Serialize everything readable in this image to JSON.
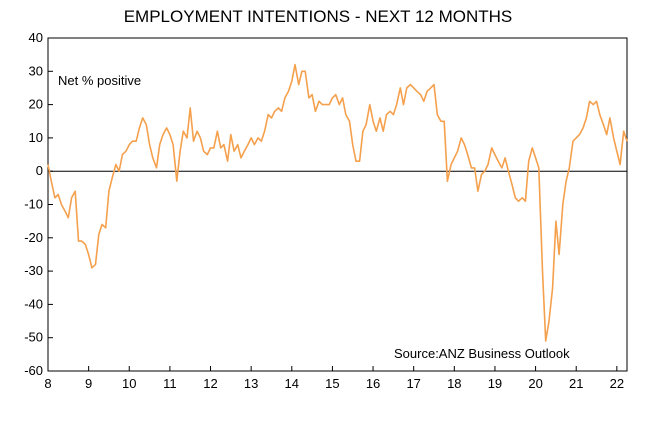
{
  "chart_data": {
    "type": "line",
    "title": "EMPLOYMENT INTENTIONS - NEXT 12 MONTHS",
    "ylabel_note": "Net % positive",
    "source": "Source:ANZ Business Outlook",
    "ylim": [
      -60,
      40
    ],
    "yticks": [
      40,
      30,
      20,
      10,
      0,
      -10,
      -20,
      -30,
      -40,
      -50,
      -60
    ],
    "xlim": [
      2008,
      2022.25
    ],
    "xticks": [
      2008,
      2009,
      2010,
      2011,
      2012,
      2013,
      2014,
      2015,
      2016,
      2017,
      2018,
      2019,
      2020,
      2021,
      2022
    ],
    "xtick_labels": [
      "8",
      "9",
      "10",
      "11",
      "12",
      "13",
      "14",
      "15",
      "16",
      "17",
      "18",
      "19",
      "20",
      "21",
      "22"
    ],
    "grid": false,
    "line_color": "#F4A04D",
    "series": [
      {
        "points": [
          [
            2008.0,
            2
          ],
          [
            2008.08,
            -3
          ],
          [
            2008.17,
            -8
          ],
          [
            2008.25,
            -7
          ],
          [
            2008.33,
            -10
          ],
          [
            2008.42,
            -12
          ],
          [
            2008.5,
            -14
          ],
          [
            2008.58,
            -8
          ],
          [
            2008.67,
            -6
          ],
          [
            2008.75,
            -21
          ],
          [
            2008.83,
            -21
          ],
          [
            2008.92,
            -22
          ],
          [
            2009.0,
            -25
          ],
          [
            2009.08,
            -29
          ],
          [
            2009.17,
            -28
          ],
          [
            2009.25,
            -19
          ],
          [
            2009.33,
            -16
          ],
          [
            2009.42,
            -17
          ],
          [
            2009.5,
            -6
          ],
          [
            2009.58,
            -2
          ],
          [
            2009.67,
            2
          ],
          [
            2009.75,
            0
          ],
          [
            2009.83,
            5
          ],
          [
            2009.92,
            6
          ],
          [
            2010.0,
            8
          ],
          [
            2010.08,
            9
          ],
          [
            2010.17,
            9
          ],
          [
            2010.25,
            13
          ],
          [
            2010.33,
            16
          ],
          [
            2010.42,
            14
          ],
          [
            2010.5,
            8
          ],
          [
            2010.58,
            4
          ],
          [
            2010.67,
            1
          ],
          [
            2010.75,
            8
          ],
          [
            2010.83,
            11
          ],
          [
            2010.92,
            13
          ],
          [
            2011.0,
            11
          ],
          [
            2011.08,
            8
          ],
          [
            2011.17,
            -3
          ],
          [
            2011.25,
            6
          ],
          [
            2011.33,
            12
          ],
          [
            2011.42,
            10
          ],
          [
            2011.5,
            19
          ],
          [
            2011.58,
            9
          ],
          [
            2011.67,
            12
          ],
          [
            2011.75,
            10
          ],
          [
            2011.83,
            6
          ],
          [
            2011.92,
            5
          ],
          [
            2012.0,
            7
          ],
          [
            2012.08,
            7
          ],
          [
            2012.17,
            12
          ],
          [
            2012.25,
            7
          ],
          [
            2012.33,
            8
          ],
          [
            2012.42,
            3
          ],
          [
            2012.5,
            11
          ],
          [
            2012.58,
            6
          ],
          [
            2012.67,
            8
          ],
          [
            2012.75,
            4
          ],
          [
            2012.83,
            6
          ],
          [
            2012.92,
            8
          ],
          [
            2013.0,
            10
          ],
          [
            2013.08,
            8
          ],
          [
            2013.17,
            10
          ],
          [
            2013.25,
            9
          ],
          [
            2013.33,
            12
          ],
          [
            2013.42,
            17
          ],
          [
            2013.5,
            16
          ],
          [
            2013.58,
            18
          ],
          [
            2013.67,
            19
          ],
          [
            2013.75,
            18
          ],
          [
            2013.83,
            22
          ],
          [
            2013.92,
            24
          ],
          [
            2014.0,
            27
          ],
          [
            2014.08,
            32
          ],
          [
            2014.17,
            26
          ],
          [
            2014.25,
            30
          ],
          [
            2014.33,
            30
          ],
          [
            2014.42,
            22
          ],
          [
            2014.5,
            23
          ],
          [
            2014.58,
            18
          ],
          [
            2014.67,
            21
          ],
          [
            2014.75,
            20
          ],
          [
            2014.83,
            20
          ],
          [
            2014.92,
            20
          ],
          [
            2015.0,
            22
          ],
          [
            2015.08,
            23
          ],
          [
            2015.17,
            20
          ],
          [
            2015.25,
            22
          ],
          [
            2015.33,
            17
          ],
          [
            2015.42,
            15
          ],
          [
            2015.5,
            8
          ],
          [
            2015.58,
            3
          ],
          [
            2015.67,
            3
          ],
          [
            2015.75,
            12
          ],
          [
            2015.83,
            14
          ],
          [
            2015.92,
            20
          ],
          [
            2016.0,
            15
          ],
          [
            2016.08,
            12
          ],
          [
            2016.17,
            16
          ],
          [
            2016.25,
            12
          ],
          [
            2016.33,
            17
          ],
          [
            2016.42,
            18
          ],
          [
            2016.5,
            17
          ],
          [
            2016.58,
            20
          ],
          [
            2016.67,
            25
          ],
          [
            2016.75,
            20
          ],
          [
            2016.83,
            25
          ],
          [
            2016.92,
            26
          ],
          [
            2017.0,
            25
          ],
          [
            2017.08,
            24
          ],
          [
            2017.17,
            23
          ],
          [
            2017.25,
            21
          ],
          [
            2017.33,
            24
          ],
          [
            2017.42,
            25
          ],
          [
            2017.5,
            26
          ],
          [
            2017.58,
            17
          ],
          [
            2017.67,
            15
          ],
          [
            2017.75,
            15
          ],
          [
            2017.83,
            -3
          ],
          [
            2017.92,
            2
          ],
          [
            2018.0,
            4
          ],
          [
            2018.08,
            6
          ],
          [
            2018.17,
            10
          ],
          [
            2018.25,
            8
          ],
          [
            2018.33,
            5
          ],
          [
            2018.42,
            1
          ],
          [
            2018.5,
            1
          ],
          [
            2018.58,
            -6
          ],
          [
            2018.67,
            -1
          ],
          [
            2018.75,
            0
          ],
          [
            2018.83,
            2
          ],
          [
            2018.92,
            7
          ],
          [
            2019.0,
            5
          ],
          [
            2019.08,
            3
          ],
          [
            2019.17,
            1
          ],
          [
            2019.25,
            4
          ],
          [
            2019.33,
            0
          ],
          [
            2019.42,
            -4
          ],
          [
            2019.5,
            -8
          ],
          [
            2019.58,
            -9
          ],
          [
            2019.67,
            -8
          ],
          [
            2019.75,
            -9
          ],
          [
            2019.83,
            3
          ],
          [
            2019.92,
            7
          ],
          [
            2020.0,
            4
          ],
          [
            2020.08,
            1
          ],
          [
            2020.17,
            -30
          ],
          [
            2020.25,
            -51
          ],
          [
            2020.33,
            -45
          ],
          [
            2020.42,
            -35
          ],
          [
            2020.5,
            -15
          ],
          [
            2020.58,
            -25
          ],
          [
            2020.67,
            -10
          ],
          [
            2020.75,
            -3
          ],
          [
            2020.83,
            1
          ],
          [
            2020.92,
            9
          ],
          [
            2021.0,
            10
          ],
          [
            2021.08,
            11
          ],
          [
            2021.17,
            13
          ],
          [
            2021.25,
            16
          ],
          [
            2021.33,
            21
          ],
          [
            2021.42,
            20
          ],
          [
            2021.5,
            21
          ],
          [
            2021.58,
            17
          ],
          [
            2021.67,
            14
          ],
          [
            2021.75,
            11
          ],
          [
            2021.83,
            16
          ],
          [
            2021.92,
            10
          ],
          [
            2022.0,
            6
          ],
          [
            2022.08,
            2
          ],
          [
            2022.17,
            12
          ],
          [
            2022.25,
            9
          ]
        ]
      }
    ]
  }
}
